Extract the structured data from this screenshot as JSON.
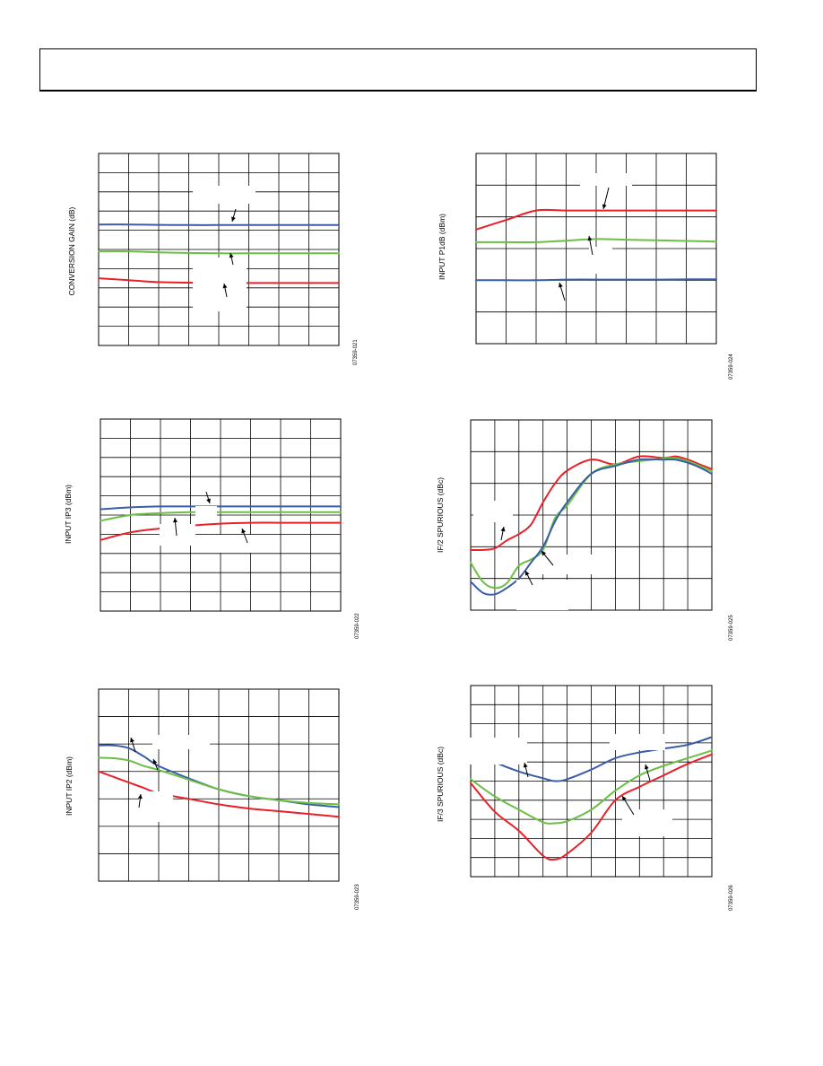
{
  "colors": {
    "red": "#e8202a",
    "green": "#6cbf45",
    "blue": "#3a5da8"
  },
  "chart_data": [
    {
      "type": "line",
      "ylabel": "CONVERSION GAIN (dB)",
      "figure_id": "07359-021",
      "xlim": [
        0,
        8
      ],
      "ylim": [
        0,
        10
      ],
      "grid": true,
      "series": [
        {
          "color": "blue",
          "x": [
            0,
            1,
            2,
            3,
            4,
            5,
            6,
            7,
            8
          ],
          "y": [
            6.3,
            6.3,
            6.28,
            6.27,
            6.27,
            6.27,
            6.27,
            6.27,
            6.27
          ]
        },
        {
          "color": "green",
          "x": [
            0,
            1,
            2,
            3,
            4,
            5,
            6,
            7,
            8
          ],
          "y": [
            4.9,
            4.9,
            4.85,
            4.82,
            4.8,
            4.8,
            4.8,
            4.8,
            4.8
          ]
        },
        {
          "color": "red",
          "x": [
            0,
            1,
            2,
            3,
            4,
            5,
            6,
            7,
            8
          ],
          "y": [
            3.5,
            3.4,
            3.3,
            3.27,
            3.25,
            3.25,
            3.25,
            3.25,
            3.25
          ]
        }
      ]
    },
    {
      "type": "line",
      "ylabel": "INPUT P1dB (dBm)",
      "figure_id": "07359-024",
      "xlim": [
        0,
        8
      ],
      "ylim": [
        0,
        6
      ],
      "grid": true,
      "series": [
        {
          "color": "red",
          "x": [
            0,
            1,
            2,
            3,
            4,
            5,
            6,
            7,
            8
          ],
          "y": [
            3.6,
            3.9,
            4.2,
            4.2,
            4.2,
            4.2,
            4.2,
            4.2,
            4.2
          ]
        },
        {
          "color": "green",
          "x": [
            0,
            1,
            2,
            3,
            4,
            5,
            6,
            7,
            8
          ],
          "y": [
            3.2,
            3.2,
            3.2,
            3.25,
            3.3,
            3.28,
            3.26,
            3.24,
            3.22
          ]
        },
        {
          "color": "blue",
          "x": [
            0,
            1,
            2,
            3,
            4,
            5,
            6,
            7,
            8
          ],
          "y": [
            2.0,
            2.0,
            2.0,
            2.02,
            2.02,
            2.02,
            2.02,
            2.03,
            2.03
          ]
        }
      ]
    },
    {
      "type": "line",
      "ylabel": "INPUT IP3 (dBm)",
      "figure_id": "07359-022",
      "xlim": [
        0,
        8
      ],
      "ylim": [
        0,
        10
      ],
      "grid": true,
      "series": [
        {
          "color": "blue",
          "x": [
            0,
            1,
            2,
            3,
            4,
            5,
            6,
            7,
            8
          ],
          "y": [
            5.3,
            5.4,
            5.45,
            5.45,
            5.45,
            5.45,
            5.45,
            5.45,
            5.45
          ]
        },
        {
          "color": "green",
          "x": [
            0,
            1,
            2,
            3,
            4,
            5,
            6,
            7,
            8
          ],
          "y": [
            4.7,
            5.0,
            5.1,
            5.15,
            5.15,
            5.15,
            5.15,
            5.15,
            5.15
          ]
        },
        {
          "color": "red",
          "x": [
            0,
            1,
            2,
            3,
            4,
            5,
            6,
            7,
            8
          ],
          "y": [
            3.7,
            4.1,
            4.3,
            4.45,
            4.55,
            4.6,
            4.6,
            4.6,
            4.6
          ]
        }
      ]
    },
    {
      "type": "line",
      "ylabel": "IF/2 SPURIOUS (dBc)",
      "figure_id": "07359-025",
      "xlim": [
        0,
        10
      ],
      "ylim": [
        0,
        6
      ],
      "grid": true,
      "series": [
        {
          "color": "red",
          "x": [
            0,
            0.5,
            1,
            1.5,
            2,
            2.5,
            3,
            3.5,
            4,
            5,
            6,
            7,
            8,
            8.5,
            9,
            9.5,
            10
          ],
          "y": [
            1.9,
            1.9,
            1.95,
            2.2,
            2.4,
            2.7,
            3.4,
            4.0,
            4.4,
            4.75,
            4.6,
            4.85,
            4.8,
            4.85,
            4.75,
            4.6,
            4.45
          ]
        },
        {
          "color": "green",
          "x": [
            0,
            0.5,
            1,
            1.5,
            2,
            2.5,
            3,
            3.5,
            4,
            5,
            6,
            7,
            8,
            8.5,
            9,
            9.5,
            10
          ],
          "y": [
            1.5,
            0.9,
            0.7,
            0.85,
            1.4,
            1.6,
            1.9,
            2.9,
            3.3,
            4.3,
            4.6,
            4.7,
            4.78,
            4.8,
            4.7,
            4.55,
            4.38
          ]
        },
        {
          "color": "blue",
          "x": [
            0,
            0.5,
            1,
            1.5,
            2,
            2.5,
            3,
            3.5,
            4,
            5,
            6,
            7,
            8,
            8.5,
            9,
            9.5,
            10
          ],
          "y": [
            0.9,
            0.55,
            0.5,
            0.7,
            1.0,
            1.5,
            2.0,
            2.8,
            3.4,
            4.3,
            4.55,
            4.75,
            4.75,
            4.75,
            4.65,
            4.5,
            4.3
          ]
        }
      ]
    },
    {
      "type": "line",
      "ylabel": "INPUT IP2 (dBm)",
      "figure_id": "07359-023",
      "xlim": [
        0,
        8
      ],
      "ylim": [
        0,
        7
      ],
      "grid": true,
      "series": [
        {
          "color": "blue",
          "x": [
            0,
            0.5,
            1,
            1.5,
            2,
            3,
            4,
            5,
            6,
            7,
            8
          ],
          "y": [
            4.95,
            4.95,
            4.85,
            4.55,
            4.2,
            3.75,
            3.35,
            3.1,
            2.95,
            2.8,
            2.7
          ]
        },
        {
          "color": "green",
          "x": [
            0,
            0.5,
            1,
            1.5,
            2,
            3,
            4,
            5,
            6,
            7,
            8
          ],
          "y": [
            4.5,
            4.48,
            4.4,
            4.2,
            4.05,
            3.7,
            3.35,
            3.1,
            2.95,
            2.85,
            2.8
          ]
        },
        {
          "color": "red",
          "x": [
            0,
            0.5,
            1,
            1.5,
            2,
            3,
            4,
            5,
            6,
            7,
            8
          ],
          "y": [
            4.0,
            3.8,
            3.6,
            3.4,
            3.2,
            3.0,
            2.8,
            2.65,
            2.55,
            2.45,
            2.35
          ]
        }
      ]
    },
    {
      "type": "line",
      "ylabel": "IF/3 SPURIOUS (dBc)",
      "figure_id": "07359-026",
      "xlim": [
        0,
        10
      ],
      "ylim": [
        0,
        10
      ],
      "grid": true,
      "series": [
        {
          "color": "blue",
          "x": [
            0,
            1,
            2,
            3,
            3.5,
            4,
            5,
            6,
            7,
            8,
            9,
            10
          ],
          "y": [
            6.7,
            6.0,
            5.5,
            5.15,
            5.0,
            5.1,
            5.6,
            6.2,
            6.5,
            6.7,
            6.9,
            7.3
          ]
        },
        {
          "color": "green",
          "x": [
            0,
            1,
            2,
            3,
            3.5,
            4,
            5,
            6,
            7,
            8,
            9,
            10
          ],
          "y": [
            5.1,
            4.2,
            3.5,
            2.85,
            2.8,
            2.9,
            3.5,
            4.5,
            5.3,
            5.8,
            6.2,
            6.6
          ]
        },
        {
          "color": "red",
          "x": [
            0,
            1,
            2,
            3,
            3.5,
            4,
            5,
            6,
            7,
            8,
            9,
            10
          ],
          "y": [
            4.9,
            3.4,
            2.4,
            1.1,
            0.9,
            1.2,
            2.3,
            4.0,
            4.7,
            5.3,
            5.9,
            6.4
          ]
        }
      ]
    }
  ]
}
